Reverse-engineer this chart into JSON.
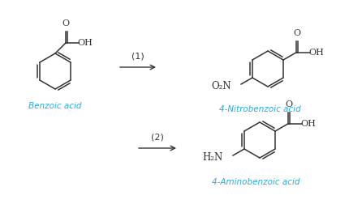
{
  "background_color": "#ffffff",
  "label_color": "#29abe2",
  "line_color": "#333333",
  "text_color": "#333333",
  "label_benzoic": "Benzoic acid",
  "label_nitro": "4-Nitrobenzoic acid",
  "label_amino": "4-Aminobenzoic acid",
  "step1_label": "(1)",
  "step2_label": "(2)",
  "fig_width": 4.3,
  "fig_height": 2.73,
  "dpi": 100
}
